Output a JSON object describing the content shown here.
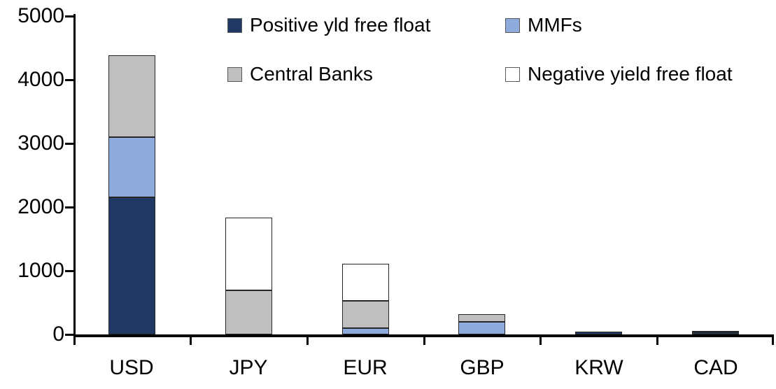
{
  "chart_data": {
    "type": "bar",
    "stacked": true,
    "title": "",
    "xlabel": "",
    "ylabel": "",
    "categories": [
      "USD",
      "JPY",
      "EUR",
      "GBP",
      "KRW",
      "CAD"
    ],
    "series": [
      {
        "name": "Positive yld free float",
        "color": "#203864",
        "values": [
          2150,
          0,
          0,
          0,
          40,
          30
        ]
      },
      {
        "name": "MMFs",
        "color": "#8FAADC",
        "values": [
          950,
          0,
          100,
          200,
          0,
          0
        ]
      },
      {
        "name": "Central Banks",
        "color": "#BFBFBF",
        "values": [
          1290,
          690,
          430,
          120,
          0,
          30
        ]
      },
      {
        "name": "Negative yield free float",
        "color": "#FFFFFF",
        "values": [
          0,
          1150,
          580,
          0,
          0,
          0
        ]
      }
    ],
    "totals": [
      4390,
      1840,
      1110,
      320,
      40,
      60
    ],
    "ylim": [
      0,
      5000
    ],
    "ytick_labels": [
      "0",
      "1000",
      "2000",
      "3000",
      "4000",
      "5000"
    ],
    "grid": false,
    "legend_position": "top-inside",
    "axis_color": "#000000",
    "segment_border_color": "#262626"
  }
}
